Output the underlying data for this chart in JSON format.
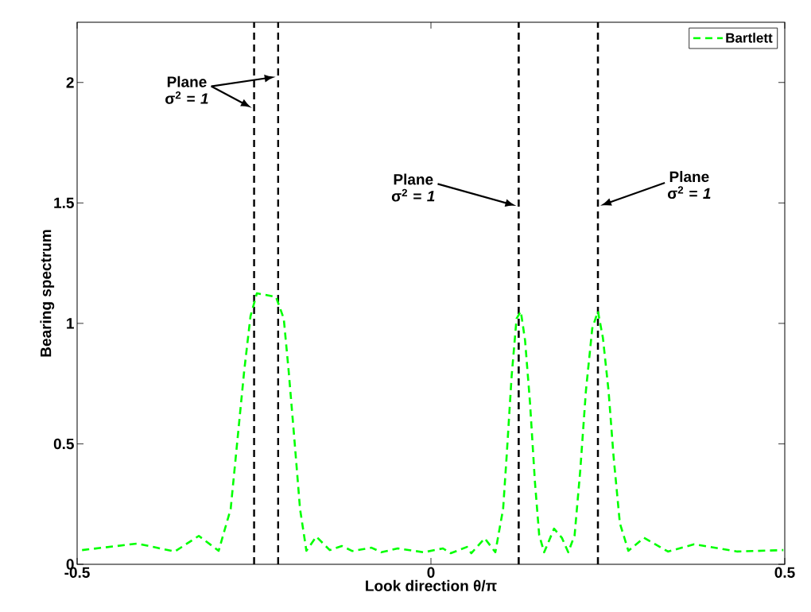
{
  "chart_data": {
    "type": "line",
    "xlabel": "Look direction θ/π",
    "ylabel": "Bearing spectrum",
    "series": [
      {
        "name": "Bartlett",
        "color": "#00ff00",
        "line_style": "dashed",
        "x": [
          -0.493,
          -0.415,
          -0.362,
          -0.328,
          -0.3,
          -0.283,
          -0.274,
          -0.264,
          -0.255,
          -0.246,
          -0.219,
          -0.208,
          -0.201,
          -0.193,
          -0.185,
          -0.176,
          -0.162,
          -0.143,
          -0.126,
          -0.111,
          -0.084,
          -0.07,
          -0.047,
          -0.01,
          0.017,
          0.028,
          0.051,
          0.057,
          0.076,
          0.091,
          0.102,
          0.107,
          0.114,
          0.121,
          0.127,
          0.133,
          0.14,
          0.147,
          0.153,
          0.16,
          0.174,
          0.185,
          0.194,
          0.203,
          0.211,
          0.219,
          0.228,
          0.236,
          0.243,
          0.251,
          0.258,
          0.267,
          0.279,
          0.301,
          0.335,
          0.372,
          0.433,
          0.498
        ],
        "values": [
          0.059,
          0.086,
          0.053,
          0.118,
          0.056,
          0.23,
          0.5,
          0.8,
          1.03,
          1.125,
          1.11,
          1.02,
          0.8,
          0.52,
          0.23,
          0.056,
          0.115,
          0.059,
          0.076,
          0.055,
          0.069,
          0.05,
          0.066,
          0.05,
          0.066,
          0.046,
          0.072,
          0.046,
          0.108,
          0.05,
          0.23,
          0.45,
          0.78,
          1.02,
          1.05,
          0.93,
          0.67,
          0.34,
          0.12,
          0.05,
          0.148,
          0.11,
          0.05,
          0.12,
          0.39,
          0.72,
          0.98,
          1.05,
          0.94,
          0.72,
          0.45,
          0.17,
          0.056,
          0.11,
          0.053,
          0.083,
          0.053,
          0.059
        ]
      }
    ],
    "xlim": [
      -0.5,
      0.5
    ],
    "ylim": [
      0,
      2.25
    ],
    "xticks": [
      -0.5,
      0,
      0.5
    ],
    "yticks": [
      0,
      0.5,
      1,
      1.5,
      2
    ],
    "ref_lines": [
      {
        "axis": "x",
        "value": -0.25,
        "color": "#000000",
        "line_style": "dashed"
      },
      {
        "axis": "x",
        "value": -0.216,
        "color": "#000000",
        "line_style": "dashed"
      },
      {
        "axis": "x",
        "value": 0.124,
        "color": "#000000",
        "line_style": "dashed"
      },
      {
        "axis": "x",
        "value": 0.236,
        "color": "#000000",
        "line_style": "dashed"
      }
    ],
    "annotations": [
      "Plane σ$^{2}$ = *1*",
      "Plane σ$^{2}$ = *1*",
      "Plane σ$^{2}$ = *1*"
    ],
    "legend": "top right",
    "grid": false
  }
}
